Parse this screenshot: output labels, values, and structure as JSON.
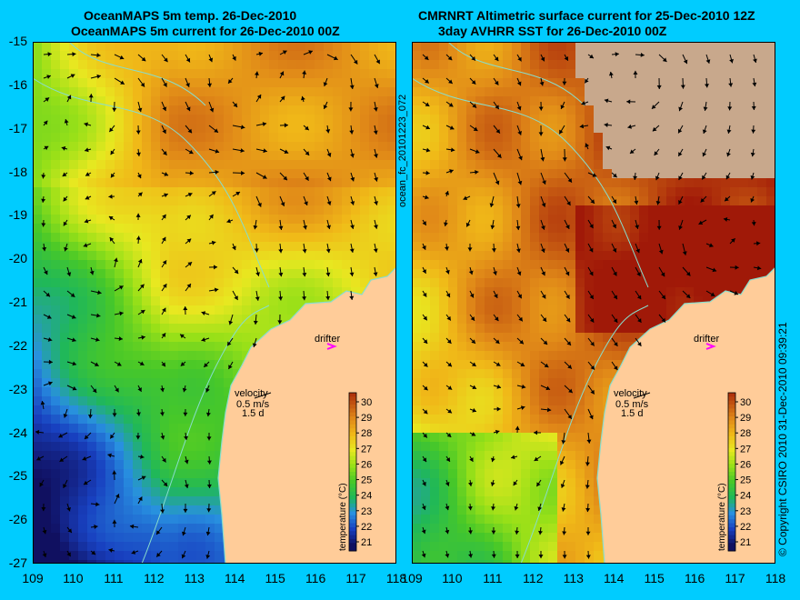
{
  "left_panel": {
    "title_line1": "OceanMAPS 5m temp. 26-Dec-2010",
    "title_line2": "OceanMAPS 5m current for 26-Dec-2010 00Z"
  },
  "right_panel": {
    "title_line1": "CMRNRT Altimetric surface current for 25-Dec-2010 12Z",
    "title_line2": "3day AVHRR SST for 26-Dec-2010 00Z"
  },
  "y_axis_labels": [
    "-15",
    "-16",
    "-17",
    "-18",
    "-19",
    "-20",
    "-21",
    "-22",
    "-23",
    "-24",
    "-25",
    "-26",
    "-27"
  ],
  "left_x_labels": [
    "109",
    "110",
    "111",
    "112",
    "113",
    "114",
    "115",
    "116",
    "117",
    "118"
  ],
  "right_x_labels": [
    "109",
    "110",
    "111",
    "112",
    "113",
    "114",
    "115",
    "116",
    "117",
    "118"
  ],
  "drifter_label": "drifter",
  "velocity_label": "velocity",
  "velocity_scale": "0.5 m/s",
  "velocity_time": "1.5 d",
  "colorbar_ticks": [
    "30",
    "29",
    "28",
    "27",
    "26",
    "25",
    "24",
    "23",
    "22",
    "21"
  ],
  "colorbar_title": "temperature (°C)",
  "side_label": "ocean_fc_20101223_072",
  "copyright": "© Copyright CSIRO 2010    31-Dec-2010 09:39:21",
  "colors": {
    "background": "#00ccff",
    "land": "#ffcc99",
    "cloud": "#c8a88c",
    "coast": "#88ddcc",
    "drifter": "#ff00ff"
  }
}
